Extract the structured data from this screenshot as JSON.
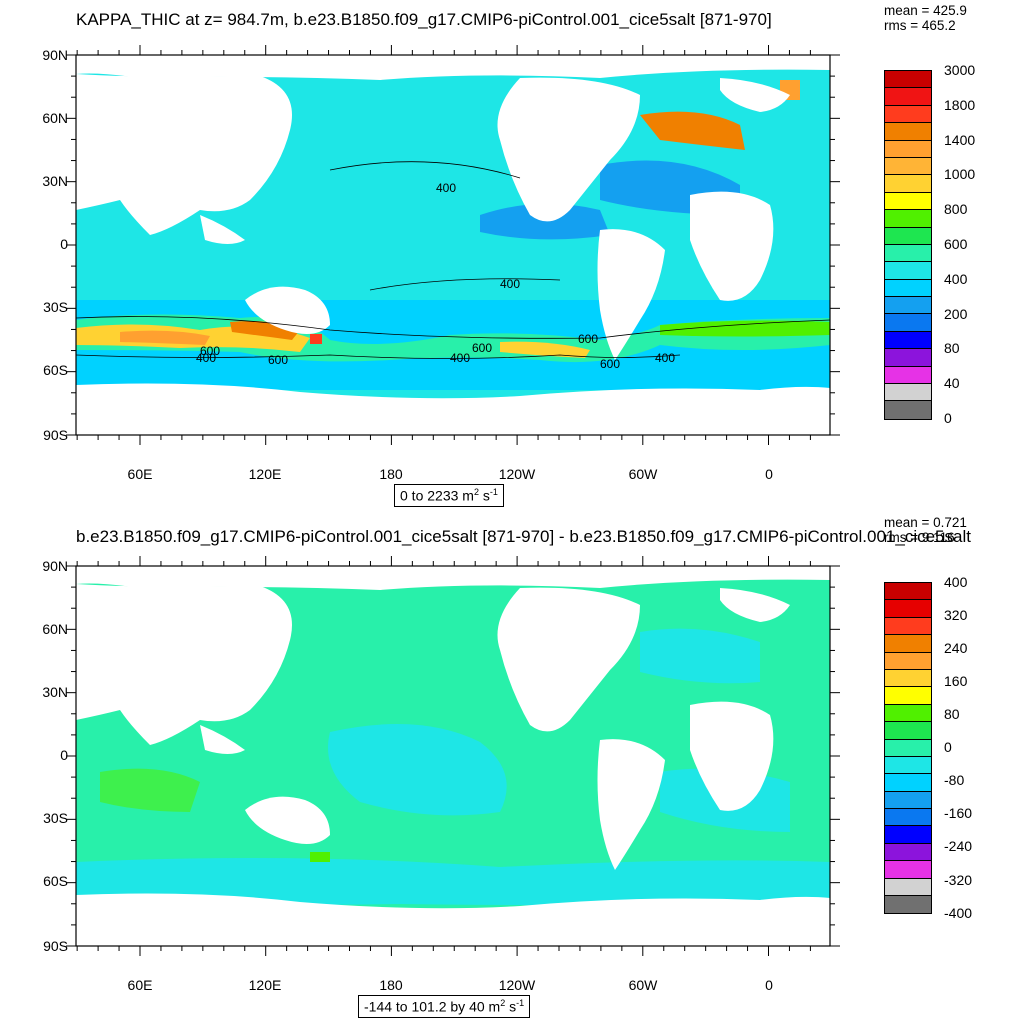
{
  "top": {
    "title": "KAPPA_THIC at z= 984.7m, b.e23.B1850.f09_g17.CMIP6-piControl.001_cice5salt [871-970]",
    "mean": "mean = 425.9",
    "rms": "rms = 465.2",
    "range": "0 to 2233",
    "units": "m",
    "units_exp": "2",
    "units_tail": " s",
    "units_tail_exp": "-1",
    "legend_labels": [
      "3000",
      "1800",
      "1400",
      "1000",
      "800",
      "600",
      "400",
      "200",
      "80",
      "40",
      "0"
    ],
    "legend_colors": [
      "#c80000",
      "#f01414",
      "#ff3c1e",
      "#f08000",
      "#ffa030",
      "#ffb436",
      "#ffd232",
      "#ffff00",
      "#50f000",
      "#1ee650",
      "#28f0aa",
      "#1ee6e6",
      "#00d2ff",
      "#14a0f0",
      "#0a78f0",
      "#0000ff",
      "#8c14dc",
      "#e632e6",
      "#d2d2d2",
      "#707070"
    ],
    "contour_labels": [
      "400",
      "400",
      "600",
      "600",
      "400",
      "600",
      "400",
      "600",
      "400",
      "600"
    ]
  },
  "bottom": {
    "title": "b.e23.B1850.f09_g17.CMIP6-piControl.001_cice5salt [871-970] - b.e23.B1850.f09_g17.CMIP6-piControl.001_cice5salt",
    "mean": "mean = 0.721",
    "rms": "rms = 9.116",
    "range": "-144 to 101.2 by 40",
    "units": "m",
    "units_exp": "2",
    "units_tail": " s",
    "units_tail_exp": "-1",
    "legend_labels": [
      "400",
      "320",
      "240",
      "160",
      "80",
      "0",
      "-80",
      "-160",
      "-240",
      "-320",
      "-400"
    ],
    "legend_colors": [
      "#c80000",
      "#e60000",
      "#ff3c1e",
      "#f08000",
      "#ffa030",
      "#ffd232",
      "#ffff00",
      "#50f000",
      "#1ee650",
      "#28f0aa",
      "#1ee6e6",
      "#00d2ff",
      "#14a0f0",
      "#0a78f0",
      "#0000ff",
      "#8c14dc",
      "#e632e6",
      "#d2d2d2",
      "#707070"
    ]
  },
  "axes": {
    "lat_labels": [
      "90N",
      "60N",
      "30N",
      "0",
      "30S",
      "60S",
      "90S"
    ],
    "lon_labels": [
      "60E",
      "120E",
      "180",
      "120W",
      "60W",
      "0"
    ]
  },
  "colors": {
    "ocean_top": "#1ee6e6",
    "ocean_bottom": "#28f0aa",
    "land": "#ffffff"
  }
}
